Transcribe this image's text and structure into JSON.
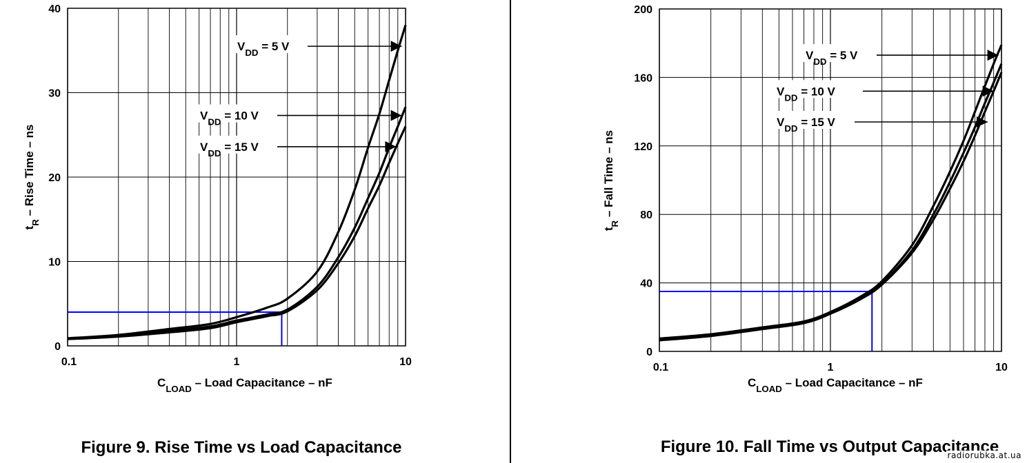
{
  "watermark": "radiorubka.at.ua",
  "chart_data": [
    {
      "type": "line",
      "title": "Figure 9. Rise Time vs Load Capacitance",
      "xlabel_main": "C",
      "xlabel_sub": "LOAD",
      "xlabel_rest": " –  Load Capacitance – nF",
      "ylabel_main": "t",
      "ylabel_sub": "R",
      "ylabel_rest": " – Rise Time – ns",
      "xscale": "log",
      "xlim": [
        0.1,
        10
      ],
      "ylim": [
        0,
        40
      ],
      "xticks": [
        0.1,
        1,
        10
      ],
      "xtick_labels": [
        "0.1",
        "1",
        "10"
      ],
      "yticks": [
        0,
        10,
        20,
        30,
        40
      ],
      "ytick_labels": [
        "0",
        "10",
        "20",
        "30",
        "40"
      ],
      "grid": true,
      "series": [
        {
          "name": "V_DD = 5 V",
          "label_main": "V",
          "label_sub": "DD",
          "label_rest": " = 5 V",
          "x": [
            0.1,
            0.2,
            0.4,
            0.7,
            1.0,
            1.5,
            2.0,
            3.0,
            4.0,
            5.0,
            6.0,
            7.0,
            8.0,
            9.0,
            10.0
          ],
          "y": [
            0.9,
            1.3,
            2.0,
            2.6,
            3.4,
            4.5,
            5.6,
            8.8,
            13.5,
            18.5,
            23.5,
            27.5,
            31.5,
            35.0,
            38.0
          ]
        },
        {
          "name": "V_DD = 10 V",
          "label_main": "V",
          "label_sub": "DD",
          "label_rest": " = 10 V",
          "x": [
            0.1,
            0.2,
            0.4,
            0.7,
            1.0,
            1.5,
            2.0,
            3.0,
            4.0,
            5.0,
            6.0,
            7.0,
            8.0,
            9.0,
            10.0
          ],
          "y": [
            0.85,
            1.2,
            1.8,
            2.3,
            3.0,
            3.7,
            4.3,
            7.0,
            10.5,
            14.0,
            17.5,
            20.5,
            23.5,
            26.0,
            28.3
          ]
        },
        {
          "name": "V_DD = 15 V",
          "label_main": "V",
          "label_sub": "DD",
          "label_rest": " = 15 V",
          "x": [
            0.1,
            0.2,
            0.4,
            0.7,
            1.0,
            1.5,
            2.0,
            3.0,
            4.0,
            5.0,
            6.0,
            7.0,
            8.0,
            9.0,
            10.0
          ],
          "y": [
            0.8,
            1.1,
            1.6,
            2.1,
            2.8,
            3.5,
            4.1,
            6.6,
            9.8,
            13.0,
            16.3,
            19.0,
            21.7,
            24.0,
            26.0
          ]
        }
      ],
      "marker_line": {
        "color": "#0000ff",
        "x": 1.85,
        "y": 4.0
      },
      "label_y_values": [
        35.5,
        27.3,
        23.6
      ],
      "arrow_tip_x": [
        9.5,
        9.5,
        8.8
      ]
    },
    {
      "type": "line",
      "title": "Figure 10. Fall Time vs Output Capacitance",
      "xlabel_main": "C",
      "xlabel_sub": "LOAD",
      "xlabel_rest": " –  Load Capacitance – nF",
      "ylabel_main": "t",
      "ylabel_sub": "R",
      "ylabel_rest": " – Fall Time – ns",
      "xscale": "log",
      "xlim": [
        0.1,
        10
      ],
      "ylim": [
        0,
        200
      ],
      "xticks": [
        0.1,
        1,
        10
      ],
      "xtick_labels": [
        "0.1",
        "1",
        "10"
      ],
      "yticks": [
        0,
        40,
        80,
        120,
        160,
        200
      ],
      "ytick_labels": [
        "0",
        "40",
        "80",
        "120",
        "160",
        "200"
      ],
      "grid": true,
      "series": [
        {
          "name": "V_DD = 5 V",
          "label_main": "V",
          "label_sub": "DD",
          "label_rest": " = 5 V",
          "x": [
            0.1,
            0.2,
            0.4,
            0.7,
            1.0,
            1.5,
            2.0,
            3.0,
            4.0,
            5.0,
            6.0,
            7.0,
            8.0,
            9.0,
            10.0
          ],
          "y": [
            7.5,
            10.0,
            14.0,
            17.5,
            23.0,
            32.0,
            41.0,
            62.0,
            85.0,
            105.0,
            123.0,
            140.0,
            155.0,
            168.0,
            179.0
          ]
        },
        {
          "name": "V_DD = 10 V",
          "label_main": "V",
          "label_sub": "DD",
          "label_rest": " = 10 V",
          "x": [
            0.1,
            0.2,
            0.4,
            0.7,
            1.0,
            1.5,
            2.0,
            3.0,
            4.0,
            5.0,
            6.0,
            7.0,
            8.0,
            9.0,
            10.0
          ],
          "y": [
            7.0,
            9.5,
            13.5,
            17.0,
            22.5,
            31.0,
            39.5,
            59.0,
            80.0,
            99.0,
            116.0,
            131.0,
            145.0,
            157.0,
            168.0
          ]
        },
        {
          "name": "V_DD = 15 V",
          "label_main": "V",
          "label_sub": "DD",
          "label_rest": " = 15 V",
          "x": [
            0.1,
            0.2,
            0.4,
            0.7,
            1.0,
            1.5,
            2.0,
            3.0,
            4.0,
            5.0,
            6.0,
            7.0,
            8.0,
            9.0,
            10.0
          ],
          "y": [
            6.5,
            9.0,
            13.0,
            16.5,
            22.0,
            30.5,
            39.0,
            57.5,
            77.0,
            95.0,
            111.0,
            126.0,
            140.0,
            152.0,
            163.0
          ]
        }
      ],
      "marker_line": {
        "color": "#0000ff",
        "x": 1.75,
        "y": 35.0
      },
      "label_y_values": [
        173.0,
        152.0,
        134.0
      ],
      "arrow_tip_x": [
        9.6,
        9.0,
        8.3
      ]
    }
  ]
}
